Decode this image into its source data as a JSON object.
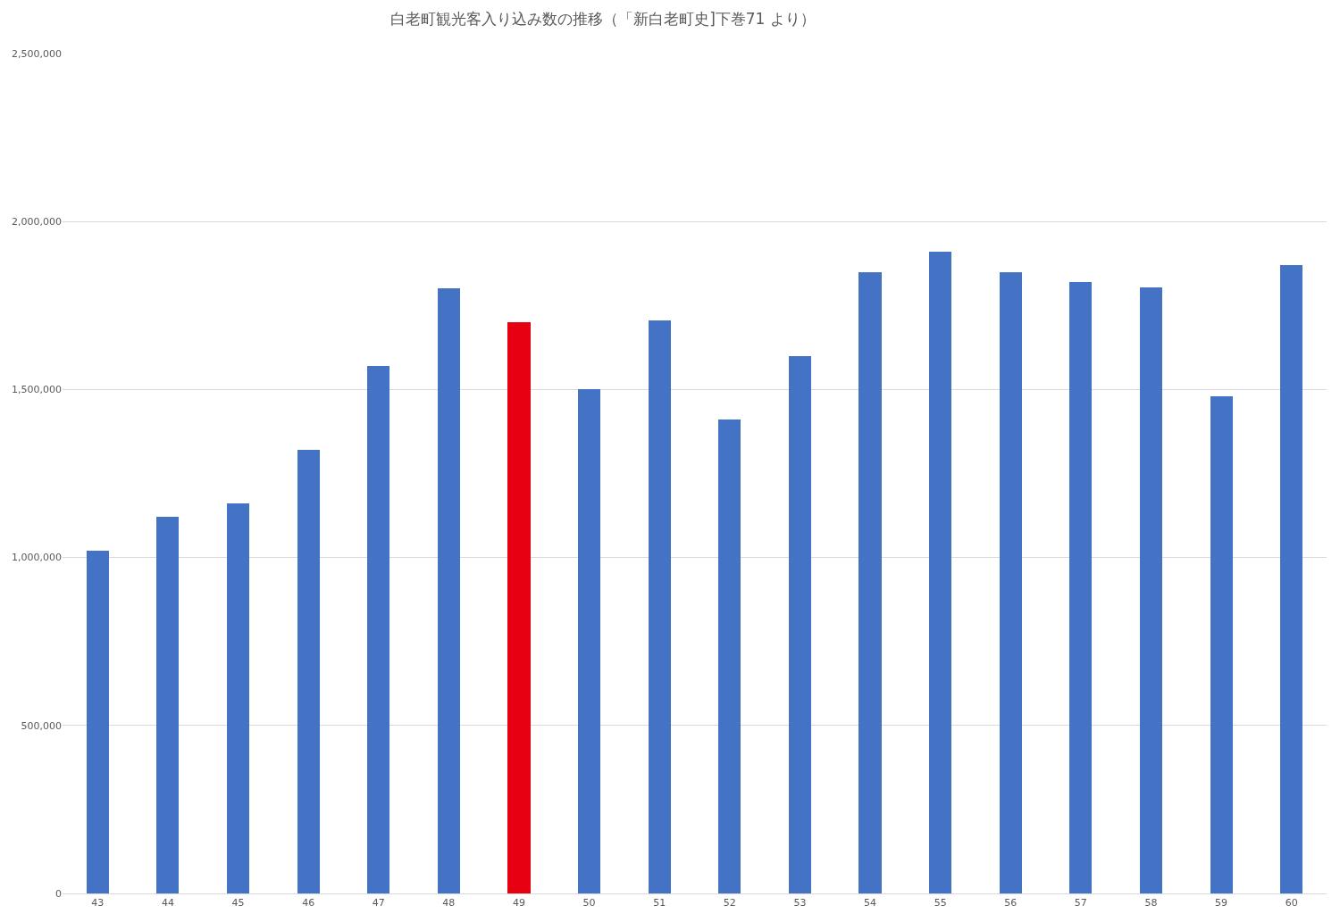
{
  "chart_data": {
    "type": "bar",
    "title": "白老町観光客入り込み数の推移（「新白老町史]下巻71 より）",
    "categories": [
      "43",
      "44",
      "45",
      "46",
      "47",
      "48",
      "49",
      "50",
      "51",
      "52",
      "53",
      "54",
      "55",
      "56",
      "57",
      "58",
      "59",
      "60"
    ],
    "values": [
      1020000,
      1120000,
      1160000,
      1320000,
      1570000,
      1800000,
      1700000,
      1500000,
      1705000,
      1410000,
      1600000,
      1850000,
      1910000,
      1850000,
      1820000,
      1805000,
      1480000,
      1870000
    ],
    "colors": [
      "#4472c4",
      "#4472c4",
      "#4472c4",
      "#4472c4",
      "#4472c4",
      "#4472c4",
      "#e60012",
      "#4472c4",
      "#4472c4",
      "#4472c4",
      "#4472c4",
      "#4472c4",
      "#4472c4",
      "#4472c4",
      "#4472c4",
      "#4472c4",
      "#4472c4",
      "#4472c4"
    ],
    "ylim": [
      0,
      2500000
    ],
    "yticks": [
      {
        "value": 0,
        "label": "0"
      },
      {
        "value": 500000,
        "label": "500,000"
      },
      {
        "value": 1000000,
        "label": "1,000,000"
      },
      {
        "value": 1500000,
        "label": "1,500,000"
      },
      {
        "value": 2000000,
        "label": "2,000,000"
      },
      {
        "value": 2500000,
        "label": "2,500,000"
      }
    ],
    "grid": "y"
  }
}
